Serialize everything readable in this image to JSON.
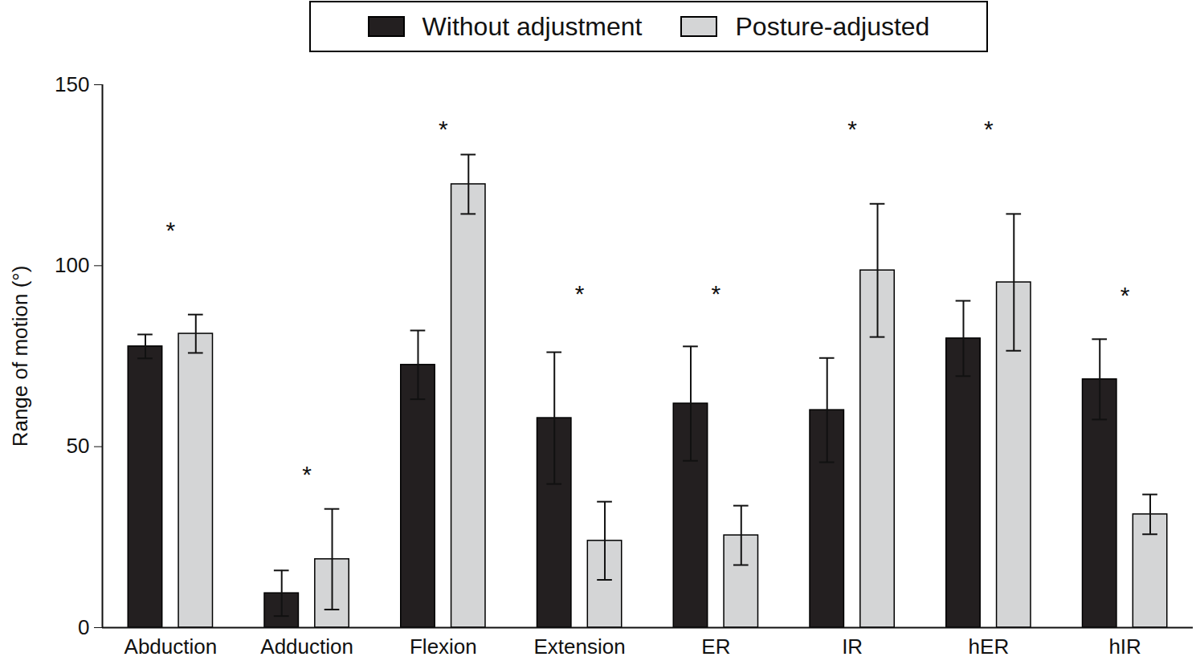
{
  "chart_data": {
    "type": "bar",
    "categories": [
      "Abduction",
      "Adduction",
      "Flexion",
      "Extension",
      "ER",
      "IR",
      "hER",
      "hIR"
    ],
    "series": [
      {
        "name": "Without adjustment",
        "color": "#231f20",
        "values": [
          77.7,
          9.5,
          72.6,
          57.9,
          61.9,
          60.1,
          79.9,
          68.6
        ],
        "errors": [
          3.3,
          6.3,
          9.5,
          18.2,
          15.8,
          14.4,
          10.4,
          11.1
        ]
      },
      {
        "name": "Posture-adjusted",
        "color": "#d4d5d6",
        "values": [
          81.2,
          18.9,
          122.5,
          24.0,
          25.5,
          98.7,
          95.4,
          31.3
        ],
        "errors": [
          5.3,
          13.9,
          8.2,
          10.8,
          8.2,
          18.4,
          18.9,
          5.5
        ]
      }
    ],
    "y_label": "Range of motion (°)",
    "ylim": [
      0,
      150
    ],
    "yticks": [
      0,
      50,
      100,
      150
    ],
    "legend": "top",
    "annotations": [
      {
        "category": "Abduction",
        "text": "*",
        "y": 111
      },
      {
        "category": "Adduction",
        "text": "*",
        "y": 43.5
      },
      {
        "category": "Flexion",
        "text": "*",
        "y": 139
      },
      {
        "category": "Extension",
        "text": "*",
        "y": 93.4
      },
      {
        "category": "ER",
        "text": "*",
        "y": 93.4
      },
      {
        "category": "IR",
        "text": "*",
        "y": 139
      },
      {
        "category": "hER",
        "text": "*",
        "y": 139
      },
      {
        "category": "hIR",
        "text": "*",
        "y": 93
      }
    ]
  }
}
